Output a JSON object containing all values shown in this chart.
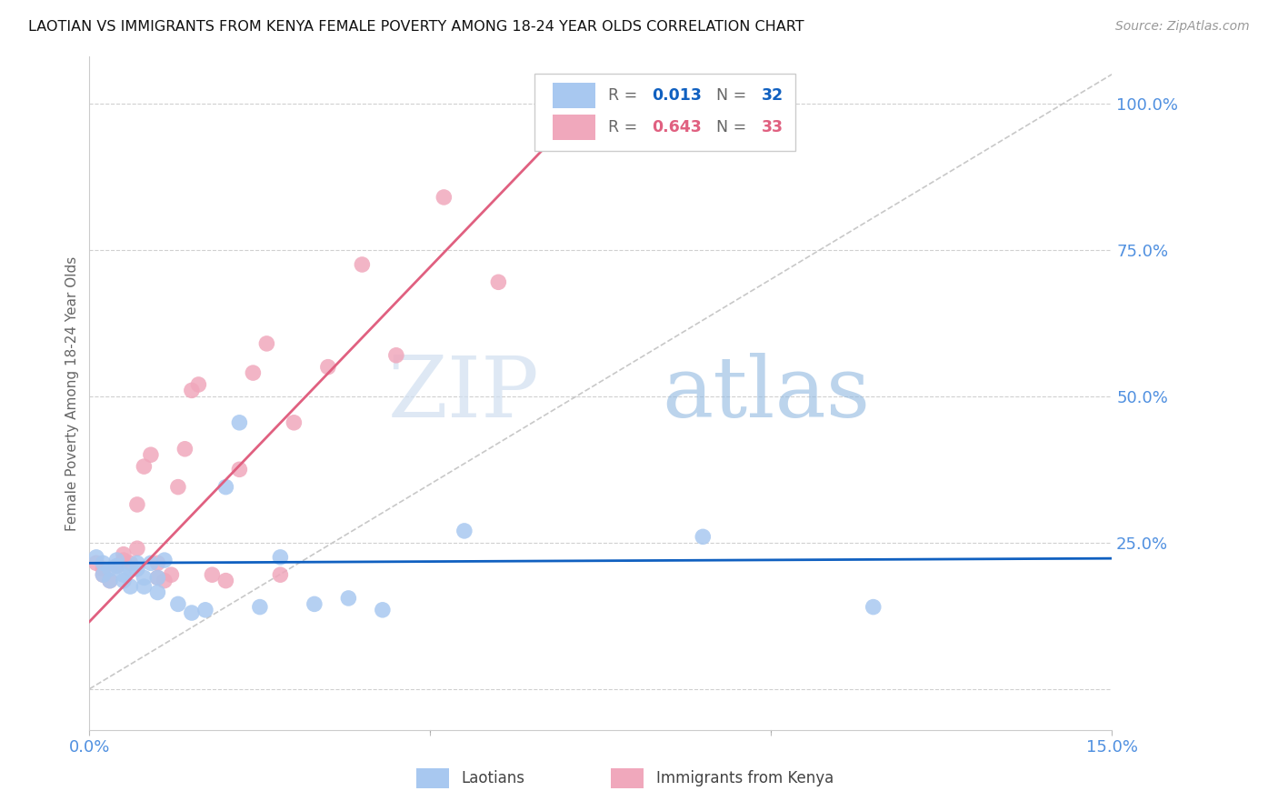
{
  "title": "LAOTIAN VS IMMIGRANTS FROM KENYA FEMALE POVERTY AMONG 18-24 YEAR OLDS CORRELATION CHART",
  "source": "Source: ZipAtlas.com",
  "ylabel": "Female Poverty Among 18-24 Year Olds",
  "xlim": [
    0.0,
    0.15
  ],
  "ylim": [
    -0.07,
    1.08
  ],
  "laotian_color": "#a8c8f0",
  "kenya_color": "#f0a8bc",
  "laotian_line_color": "#1060c0",
  "kenya_line_color": "#e06080",
  "diagonal_color": "#c8c8c8",
  "background_color": "#ffffff",
  "grid_color": "#d0d0d0",
  "axis_label_color": "#5090e0",
  "watermark_zip": "ZIP",
  "watermark_atlas": "atlas",
  "laotian_scatter_x": [
    0.001,
    0.002,
    0.002,
    0.003,
    0.003,
    0.004,
    0.004,
    0.005,
    0.005,
    0.006,
    0.006,
    0.007,
    0.007,
    0.008,
    0.008,
    0.009,
    0.01,
    0.01,
    0.011,
    0.013,
    0.015,
    0.017,
    0.02,
    0.022,
    0.025,
    0.028,
    0.033,
    0.038,
    0.043,
    0.055,
    0.09,
    0.115
  ],
  "laotian_scatter_y": [
    0.225,
    0.215,
    0.195,
    0.205,
    0.185,
    0.21,
    0.22,
    0.185,
    0.195,
    0.205,
    0.175,
    0.205,
    0.215,
    0.175,
    0.19,
    0.215,
    0.19,
    0.165,
    0.22,
    0.145,
    0.13,
    0.135,
    0.345,
    0.455,
    0.14,
    0.225,
    0.145,
    0.155,
    0.135,
    0.27,
    0.26,
    0.14
  ],
  "kenya_scatter_x": [
    0.001,
    0.002,
    0.002,
    0.003,
    0.004,
    0.005,
    0.005,
    0.006,
    0.007,
    0.007,
    0.008,
    0.009,
    0.01,
    0.01,
    0.011,
    0.012,
    0.013,
    0.014,
    0.015,
    0.016,
    0.018,
    0.02,
    0.022,
    0.024,
    0.026,
    0.028,
    0.03,
    0.035,
    0.04,
    0.045,
    0.052,
    0.06,
    0.07
  ],
  "kenya_scatter_y": [
    0.215,
    0.205,
    0.195,
    0.185,
    0.21,
    0.22,
    0.23,
    0.215,
    0.24,
    0.315,
    0.38,
    0.4,
    0.215,
    0.19,
    0.185,
    0.195,
    0.345,
    0.41,
    0.51,
    0.52,
    0.195,
    0.185,
    0.375,
    0.54,
    0.59,
    0.195,
    0.455,
    0.55,
    0.725,
    0.57,
    0.84,
    0.695,
    1.0
  ],
  "laotian_line_x": [
    0.0,
    0.15
  ],
  "laotian_line_y": [
    0.215,
    0.223
  ],
  "kenya_line_x": [
    0.0,
    0.073
  ],
  "kenya_line_y": [
    0.115,
    1.0
  ],
  "diagonal_line_x": [
    0.0,
    0.15
  ],
  "diagonal_line_y": [
    0.0,
    1.05
  ]
}
